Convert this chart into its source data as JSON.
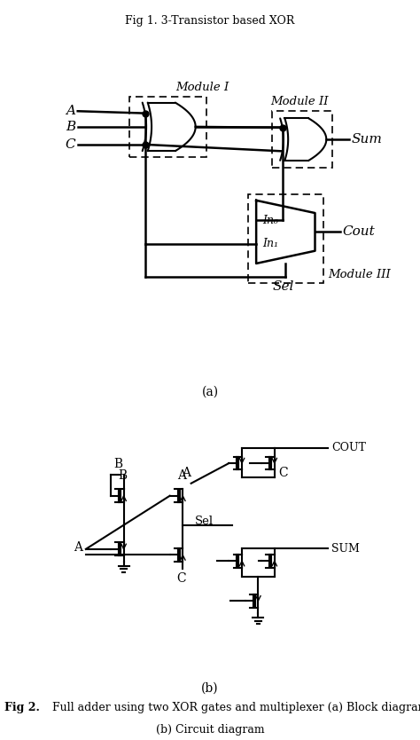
{
  "title1": "Fig 1. 3-Transistor based XOR",
  "label_a": "A",
  "label_b": "B",
  "label_c": "C",
  "label_sum": "Sum",
  "label_cout": "Cout",
  "label_sel": "Sel",
  "label_in0": "In₀",
  "label_in1": "In₁",
  "label_module1": "Module I",
  "label_module2": "Module II",
  "label_module3": "Module III",
  "label_a_paren": "(a)",
  "label_b_paren": "(b)",
  "label_COUT": "COUT",
  "label_SUM": "SUM",
  "label_A_circ": "A",
  "label_B_circ": "B",
  "label_C_circ": "C",
  "label_Sel_circ": "Sel",
  "fig2_bold": "Fig 2.",
  "fig2_rest": " Full adder using two XOR gates and multiplexer (a) Block diagram",
  "fig2_line2": "(b) Circuit diagram",
  "bg_color": "#ffffff",
  "lc": "#000000"
}
